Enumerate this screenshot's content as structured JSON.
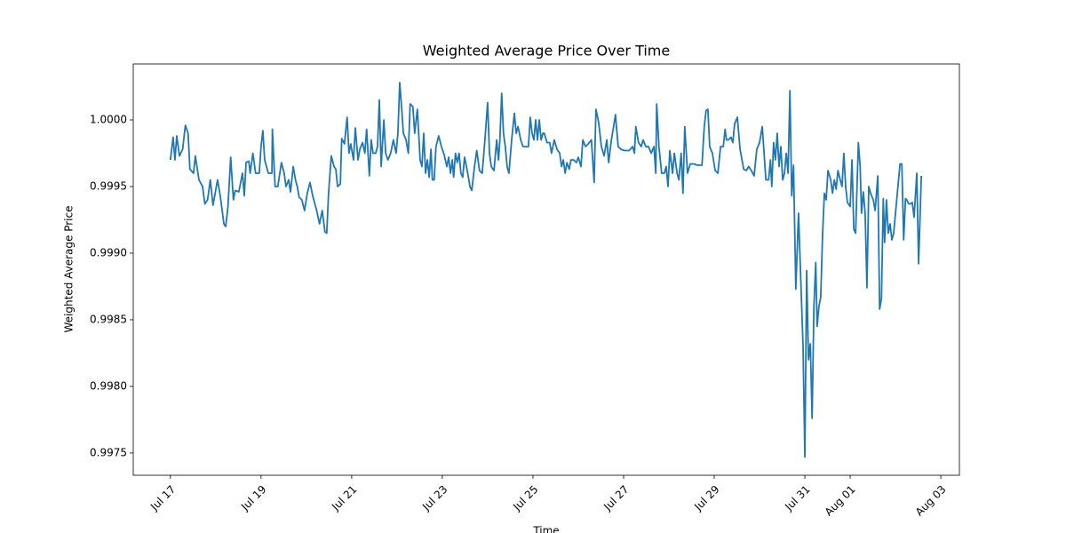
{
  "chart_data": {
    "type": "line",
    "title": "Weighted Average Price Over Time",
    "x_label": "Time",
    "y_label": "Weighted Average Price",
    "color": "#1f77b4",
    "grid": false,
    "xlim": [
      16.18,
      34.41
    ],
    "ylim": [
      0.997333,
      1.00042
    ],
    "xticks": [
      {
        "value": 17,
        "label": "Jul 17"
      },
      {
        "value": 19,
        "label": "Jul 19"
      },
      {
        "value": 21,
        "label": "Jul 21"
      },
      {
        "value": 23,
        "label": "Jul 23"
      },
      {
        "value": 25,
        "label": "Jul 25"
      },
      {
        "value": 27,
        "label": "Jul 27"
      },
      {
        "value": 29,
        "label": "Jul 29"
      },
      {
        "value": 31,
        "label": "Jul 31"
      },
      {
        "value": 32,
        "label": "Aug 01"
      },
      {
        "value": 34,
        "label": "Aug 03"
      }
    ],
    "yticks": [
      {
        "value": 0.9975,
        "label": "0.9975"
      },
      {
        "value": 0.998,
        "label": "0.9980"
      },
      {
        "value": 0.9985,
        "label": "0.9985"
      },
      {
        "value": 0.999,
        "label": "0.9990"
      },
      {
        "value": 0.9995,
        "label": "0.9995"
      },
      {
        "value": 1,
        "label": "1.0000"
      }
    ],
    "x": [
      17.0,
      17.06,
      17.1,
      17.14,
      17.2,
      17.27,
      17.33,
      17.39,
      17.43,
      17.51,
      17.55,
      17.63,
      17.71,
      17.76,
      17.82,
      17.88,
      17.94,
      18.04,
      18.1,
      18.18,
      18.22,
      18.27,
      18.33,
      18.39,
      18.43,
      18.51,
      18.59,
      18.63,
      18.67,
      18.73,
      18.76,
      18.82,
      18.88,
      18.96,
      19.0,
      19.04,
      19.08,
      19.16,
      19.24,
      19.25,
      19.31,
      19.37,
      19.45,
      19.51,
      19.55,
      19.61,
      19.65,
      19.71,
      19.76,
      19.8,
      19.84,
      19.9,
      19.96,
      20.02,
      20.08,
      20.14,
      20.22,
      20.29,
      20.35,
      20.41,
      20.45,
      20.49,
      20.55,
      20.61,
      20.65,
      20.69,
      20.75,
      20.78,
      20.84,
      20.9,
      20.94,
      20.98,
      21.04,
      21.08,
      21.14,
      21.18,
      21.24,
      21.29,
      21.33,
      21.39,
      21.43,
      21.47,
      21.53,
      21.57,
      21.61,
      21.65,
      21.71,
      21.75,
      21.8,
      21.86,
      21.92,
      21.98,
      22.02,
      22.06,
      22.1,
      22.14,
      22.2,
      22.25,
      22.29,
      22.35,
      22.39,
      22.45,
      22.51,
      22.55,
      22.59,
      22.63,
      22.67,
      22.71,
      22.75,
      22.78,
      22.82,
      22.86,
      22.92,
      22.98,
      23.04,
      23.1,
      23.14,
      23.18,
      23.22,
      23.25,
      23.29,
      23.33,
      23.37,
      23.41,
      23.45,
      23.49,
      23.55,
      23.61,
      23.65,
      23.71,
      23.76,
      23.82,
      23.88,
      23.94,
      24.0,
      24.04,
      24.08,
      24.14,
      24.2,
      24.24,
      24.27,
      24.31,
      24.35,
      24.39,
      24.43,
      24.47,
      24.53,
      24.59,
      24.63,
      24.67,
      24.73,
      24.78,
      24.82,
      24.9,
      24.94,
      24.98,
      25.02,
      25.06,
      25.1,
      25.14,
      25.18,
      25.22,
      25.25,
      25.31,
      25.37,
      25.41,
      25.47,
      25.53,
      25.59,
      25.63,
      25.67,
      25.71,
      25.75,
      25.8,
      25.84,
      25.9,
      25.96,
      26.0,
      26.06,
      26.1,
      26.16,
      26.22,
      26.29,
      26.35,
      26.39,
      26.45,
      26.51,
      26.57,
      26.63,
      26.67,
      26.73,
      26.78,
      26.82,
      26.88,
      26.94,
      27.02,
      27.12,
      27.2,
      27.24,
      27.27,
      27.33,
      27.39,
      27.43,
      27.49,
      27.55,
      27.61,
      27.67,
      27.71,
      27.73,
      27.78,
      27.84,
      27.9,
      27.94,
      27.98,
      28.02,
      28.08,
      28.12,
      28.18,
      28.22,
      28.27,
      28.31,
      28.35,
      28.41,
      28.47,
      28.55,
      28.63,
      28.73,
      28.78,
      28.82,
      28.86,
      28.9,
      28.96,
      29.02,
      29.08,
      29.14,
      29.2,
      29.24,
      29.27,
      29.31,
      29.37,
      29.41,
      29.45,
      29.51,
      29.57,
      29.65,
      29.71,
      29.76,
      29.82,
      29.88,
      29.94,
      30.0,
      30.06,
      30.1,
      30.14,
      30.2,
      30.24,
      30.27,
      30.31,
      30.35,
      30.39,
      30.43,
      30.47,
      30.51,
      30.55,
      30.59,
      30.63,
      30.67,
      30.71,
      30.75,
      30.8,
      30.86,
      30.9,
      30.96,
      31.0,
      31.04,
      31.08,
      31.12,
      31.16,
      31.2,
      31.24,
      31.27,
      31.31,
      31.35,
      31.39,
      31.43,
      31.47,
      31.51,
      31.57,
      31.61,
      31.65,
      31.69,
      31.73,
      31.78,
      31.82,
      31.86,
      31.9,
      31.94,
      32.0,
      32.04,
      32.08,
      32.12,
      32.18,
      32.22,
      32.25,
      32.29,
      32.33,
      32.37,
      32.41,
      32.45,
      32.51,
      32.55,
      32.61,
      32.65,
      32.69,
      32.73,
      32.76,
      32.8,
      32.84,
      32.88,
      32.92,
      32.96,
      33.0,
      33.04,
      33.1,
      33.14,
      33.18,
      33.22,
      33.25,
      33.29,
      33.33,
      33.37,
      33.41,
      33.47,
      33.51,
      33.57
    ],
    "values": [
      0.9997,
      0.99987,
      0.9997,
      0.99988,
      0.99973,
      0.99978,
      0.99996,
      0.9999,
      0.99963,
      0.9996,
      0.99973,
      0.99955,
      0.9995,
      0.99937,
      0.9994,
      0.99955,
      0.99936,
      0.99955,
      0.99943,
      0.99922,
      0.9992,
      0.99935,
      0.99972,
      0.9994,
      0.99947,
      0.99946,
      0.9996,
      0.99943,
      0.99968,
      0.99969,
      0.9996,
      0.99975,
      0.9996,
      0.9996,
      0.9998,
      0.99992,
      0.9997,
      0.9996,
      0.9996,
      0.99993,
      0.9995,
      0.9995,
      0.99968,
      0.9996,
      0.9995,
      0.99955,
      0.99946,
      0.99965,
      0.99955,
      0.9995,
      0.99942,
      0.9994,
      0.99932,
      0.99945,
      0.99953,
      0.99943,
      0.99933,
      0.99922,
      0.99932,
      0.99916,
      0.99915,
      0.99945,
      0.99973,
      0.99965,
      0.99963,
      0.9995,
      0.99952,
      0.99986,
      0.99982,
      1.00002,
      0.99975,
      0.99982,
      0.9997,
      0.99994,
      0.9997,
      0.99978,
      0.99983,
      0.99975,
      0.99993,
      0.99958,
      0.99985,
      0.99975,
      0.99975,
      0.9998,
      1.00015,
      0.99965,
      1.0,
      0.99975,
      0.9997,
      0.99975,
      0.99985,
      0.99975,
      0.9999,
      1.00028,
      1.0001,
      0.9999,
      0.99985,
      0.99975,
      1.00012,
      1.0001,
      0.9999,
      1.00008,
      0.9997,
      0.99965,
      0.9999,
      0.9996,
      0.9997,
      0.99957,
      0.99978,
      0.99955,
      0.99955,
      0.9998,
      0.99988,
      0.9998,
      0.99974,
      0.99965,
      0.99972,
      0.9996,
      0.9997,
      0.99957,
      0.99975,
      0.99968,
      0.99975,
      0.9996,
      0.99957,
      0.99972,
      0.99962,
      0.9995,
      0.99947,
      0.99965,
      0.99977,
      0.99962,
      0.9996,
      0.99985,
      1.00013,
      0.99975,
      0.99965,
      0.99962,
      0.99985,
      0.9997,
      0.99985,
      1.0002,
      0.9999,
      0.9998,
      0.99965,
      0.9996,
      0.99985,
      1.00005,
      0.9999,
      0.99995,
      0.99985,
      0.9998,
      0.9998,
      0.9998,
      1.00002,
      0.9999,
      0.99985,
      1.0,
      0.99985,
      1.0,
      0.99985,
      0.9999,
      0.9999,
      0.99983,
      0.99983,
      0.99975,
      0.99985,
      0.99978,
      0.99975,
      0.99965,
      0.9997,
      0.9996,
      0.99968,
      0.99963,
      0.9997,
      0.9997,
      0.99968,
      0.99972,
      0.99965,
      0.99985,
      0.9998,
      0.99982,
      0.99985,
      0.99953,
      1.00008,
      0.99998,
      0.9998,
      0.99973,
      0.99985,
      0.99968,
      0.99985,
      0.99995,
      1.00004,
      0.9998,
      0.99978,
      0.99977,
      0.99977,
      0.9998,
      0.99975,
      0.99995,
      0.99983,
      0.9998,
      0.99985,
      0.9998,
      0.9998,
      0.99975,
      0.9998,
      0.9996,
      1.00012,
      0.9998,
      0.9996,
      0.9996,
      0.99965,
      0.9995,
      0.99977,
      0.9996,
      0.99975,
      0.9996,
      0.99955,
      0.99975,
      0.99945,
      0.99995,
      0.9996,
      0.99967,
      0.99967,
      0.99966,
      0.99966,
      0.99995,
      1.00007,
      1.00008,
      0.9998,
      0.99975,
      0.99962,
      0.9996,
      0.9998,
      0.9998,
      0.99993,
      0.99985,
      0.99985,
      0.99987,
      0.99983,
      0.99997,
      1.00002,
      0.99978,
      0.99963,
      0.99962,
      0.99965,
      0.99962,
      0.99958,
      0.99978,
      0.99983,
      0.99995,
      0.99975,
      0.99955,
      0.99955,
      0.9997,
      0.9995,
      0.99983,
      0.9997,
      0.9999,
      0.99965,
      0.9998,
      0.99955,
      0.9996,
      0.99975,
      0.9996,
      1.00022,
      0.99943,
      0.99966,
      0.99873,
      0.9993,
      0.9989,
      0.9983,
      0.99747,
      0.99887,
      0.9982,
      0.99832,
      0.99776,
      0.9986,
      0.99893,
      0.99845,
      0.9986,
      0.99867,
      0.99913,
      0.99945,
      0.9994,
      0.99962,
      0.99955,
      0.99945,
      0.99955,
      0.99948,
      0.99962,
      0.99955,
      0.9995,
      0.99975,
      0.9995,
      0.99938,
      0.99935,
      0.9997,
      0.99918,
      0.99915,
      0.99983,
      0.99965,
      0.9993,
      0.99946,
      0.9993,
      0.99874,
      0.9995,
      0.99945,
      0.9994,
      0.99932,
      0.99958,
      0.99858,
      0.99866,
      0.99941,
      0.99908,
      0.9994,
      0.99915,
      0.99922,
      0.9991,
      0.99915,
      0.9993,
      0.99945,
      0.99967,
      0.99967,
      0.9991,
      0.99941,
      0.9994,
      0.99937,
      0.99937,
      0.99938,
      0.99927,
      0.9996,
      0.99892,
      0.99958
    ]
  }
}
